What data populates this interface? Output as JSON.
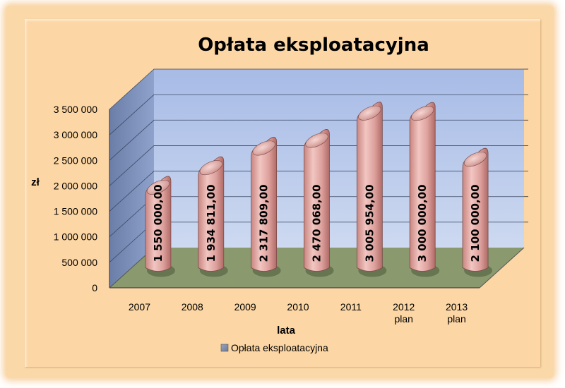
{
  "chart_data": {
    "type": "bar",
    "title": "Opłata eksploatacyjna",
    "xlabel": "lata",
    "ylabel": "zł",
    "categories": [
      [
        "2007"
      ],
      [
        "2008"
      ],
      [
        "2009"
      ],
      [
        "2010"
      ],
      [
        "2011"
      ],
      [
        "2012",
        "plan"
      ],
      [
        "2013",
        "plan"
      ]
    ],
    "series": [
      {
        "name": "Opłata eksploatacyjna",
        "values": [
          1550000,
          1934811,
          2317809,
          2470068,
          3005954,
          3000000,
          2100000
        ],
        "labels": [
          "1 550 000,00",
          "1 934 811,00",
          "2 317 809,00",
          "2 470 068,00",
          "3 005 954,00",
          "3 000 000,00",
          "2 100 000,00"
        ]
      }
    ],
    "yticks": [
      {
        "value": 0,
        "label": "0"
      },
      {
        "value": 500000,
        "label": "500 000"
      },
      {
        "value": 1000000,
        "label": "1 000 000"
      },
      {
        "value": 1500000,
        "label": "1 500 000"
      },
      {
        "value": 2000000,
        "label": "2 000 000"
      },
      {
        "value": 2500000,
        "label": "2 500 000"
      },
      {
        "value": 3000000,
        "label": "3 000 000"
      },
      {
        "value": 3500000,
        "label": "3 500 000"
      }
    ],
    "ylim": [
      0,
      3500000
    ],
    "grid": true,
    "legend": "bottom",
    "colors": {
      "bar": "#e4a9a6",
      "wall": "#9fb6e2",
      "side_wall": "#7d8fb8",
      "floor": "#8a9a6e",
      "background": "#fcd6a4"
    }
  }
}
